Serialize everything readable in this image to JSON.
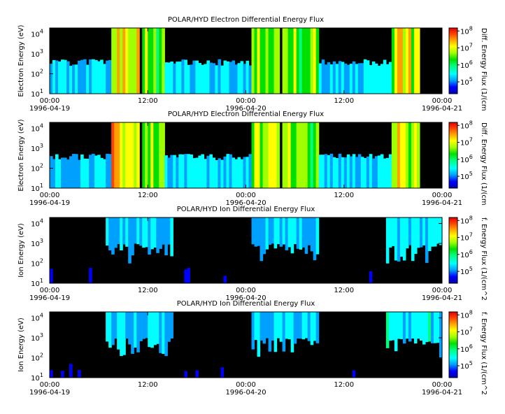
{
  "chart_data": [
    {
      "type": "heatmap",
      "title": "POLAR/HYD  Electron Differential Energy Flux",
      "ylabel": "Electron Energy (eV)",
      "y_scale": "log",
      "ylim": [
        10,
        20000
      ],
      "y_ticks": [
        {
          "value": 10,
          "base": "10",
          "exp": "1"
        },
        {
          "value": 100,
          "base": "10",
          "exp": "2"
        },
        {
          "value": 1000,
          "base": "10",
          "exp": "3"
        },
        {
          "value": 10000,
          "base": "10",
          "exp": "4"
        }
      ],
      "x_ticks": [
        {
          "time": "00:00",
          "date": "1996-04-19"
        },
        {
          "time": "12:00",
          "date": ""
        },
        {
          "time": "00:00",
          "date": "1996-04-20"
        },
        {
          "time": "12:00",
          "date": ""
        },
        {
          "time": "00:00",
          "date": "1996-04-21"
        }
      ],
      "xlim_hours": [
        0,
        48
      ],
      "colorbar": {
        "label": "Diff. Energy Flux (1/(cm",
        "scale": "log",
        "range": [
          20000,
          150000000
        ],
        "ticks": [
          {
            "value": 100000,
            "base": "10",
            "exp": "5"
          },
          {
            "value": 1000000,
            "base": "10",
            "exp": "6"
          },
          {
            "value": 10000000,
            "base": "10",
            "exp": "7"
          },
          {
            "value": 100000000,
            "base": "10",
            "exp": "8"
          }
        ]
      },
      "bursts": [
        {
          "start": 7.6,
          "end": 10.8,
          "level": 0.8
        },
        {
          "start": 11.2,
          "end": 14.2,
          "level": 0.62
        },
        {
          "start": 24.6,
          "end": 28.2,
          "level": 0.66
        },
        {
          "start": 28.4,
          "end": 32.8,
          "level": 0.6
        },
        {
          "start": 41.8,
          "end": 45.4,
          "level": 0.72
        }
      ]
    },
    {
      "type": "heatmap",
      "title": "POLAR/HYD  Electron Differential Energy Flux",
      "ylabel": "Electron Energy (eV)",
      "y_scale": "log",
      "ylim": [
        10,
        20000
      ],
      "y_ticks": [
        {
          "value": 10,
          "base": "10",
          "exp": "1"
        },
        {
          "value": 100,
          "base": "10",
          "exp": "2"
        },
        {
          "value": 1000,
          "base": "10",
          "exp": "3"
        },
        {
          "value": 10000,
          "base": "10",
          "exp": "4"
        }
      ],
      "x_ticks": [
        {
          "time": "00:00",
          "date": "1996-04-19"
        },
        {
          "time": "12:00",
          "date": ""
        },
        {
          "time": "00:00",
          "date": "1996-04-20"
        },
        {
          "time": "12:00",
          "date": ""
        },
        {
          "time": "00:00",
          "date": "1996-04-21"
        }
      ],
      "xlim_hours": [
        0,
        48
      ],
      "colorbar": {
        "label": "Diff. Energy Flux (1/(cm",
        "scale": "log",
        "range": [
          20000,
          150000000
        ],
        "ticks": [
          {
            "value": 100000,
            "base": "10",
            "exp": "5"
          },
          {
            "value": 1000000,
            "base": "10",
            "exp": "6"
          },
          {
            "value": 10000000,
            "base": "10",
            "exp": "7"
          },
          {
            "value": 100000000,
            "base": "10",
            "exp": "8"
          }
        ]
      },
      "bursts": [
        {
          "start": 7.6,
          "end": 10.8,
          "level": 0.8
        },
        {
          "start": 11.2,
          "end": 14.2,
          "level": 0.62
        },
        {
          "start": 24.6,
          "end": 28.2,
          "level": 0.66
        },
        {
          "start": 28.4,
          "end": 32.8,
          "level": 0.6
        },
        {
          "start": 41.8,
          "end": 45.4,
          "level": 0.72
        }
      ]
    },
    {
      "type": "heatmap",
      "title": "POLAR/HYD  Ion Differential Energy Flux",
      "ylabel": "Ion Energy (eV)",
      "y_scale": "log",
      "ylim": [
        10,
        20000
      ],
      "y_ticks": [
        {
          "value": 10,
          "base": "10",
          "exp": "1"
        },
        {
          "value": 100,
          "base": "10",
          "exp": "2"
        },
        {
          "value": 1000,
          "base": "10",
          "exp": "3"
        },
        {
          "value": 10000,
          "base": "10",
          "exp": "4"
        }
      ],
      "x_ticks": [
        {
          "time": "00:00",
          "date": "1996-04-19"
        },
        {
          "time": "12:00",
          "date": ""
        },
        {
          "time": "00:00",
          "date": "1996-04-20"
        },
        {
          "time": "12:00",
          "date": ""
        },
        {
          "time": "00:00",
          "date": "1996-04-21"
        }
      ],
      "xlim_hours": [
        0,
        48
      ],
      "colorbar": {
        "label": "f. Energy Flux (1/(cm^2",
        "scale": "log",
        "range": [
          20000,
          150000000
        ],
        "ticks": [
          {
            "value": 100000,
            "base": "10",
            "exp": "5"
          },
          {
            "value": 1000000,
            "base": "10",
            "exp": "6"
          },
          {
            "value": 10000000,
            "base": "10",
            "exp": "7"
          },
          {
            "value": 100000000,
            "base": "10",
            "exp": "8"
          }
        ]
      },
      "bursts": [
        {
          "start": 7.0,
          "end": 15.0,
          "level": 0.32
        },
        {
          "start": 24.8,
          "end": 33.0,
          "level": 0.3
        },
        {
          "start": 41.2,
          "end": 48.0,
          "level": 0.34
        }
      ]
    },
    {
      "type": "heatmap",
      "title": "POLAR/HYD  Ion Differential Energy Flux",
      "ylabel": "Ion Energy (eV)",
      "y_scale": "log",
      "ylim": [
        10,
        20000
      ],
      "y_ticks": [
        {
          "value": 10,
          "base": "10",
          "exp": "1"
        },
        {
          "value": 100,
          "base": "10",
          "exp": "2"
        },
        {
          "value": 1000,
          "base": "10",
          "exp": "3"
        },
        {
          "value": 10000,
          "base": "10",
          "exp": "4"
        }
      ],
      "x_ticks": [
        {
          "time": "00:00",
          "date": "1996-04-19"
        },
        {
          "time": "12:00",
          "date": ""
        },
        {
          "time": "00:00",
          "date": "1996-04-20"
        },
        {
          "time": "12:00",
          "date": ""
        },
        {
          "time": "00:00",
          "date": "1996-04-21"
        }
      ],
      "xlim_hours": [
        0,
        48
      ],
      "colorbar": {
        "label": "f. Energy Flux (1/(cm^2",
        "scale": "log",
        "range": [
          20000,
          150000000
        ],
        "ticks": [
          {
            "value": 100000,
            "base": "10",
            "exp": "5"
          },
          {
            "value": 1000000,
            "base": "10",
            "exp": "6"
          },
          {
            "value": 10000000,
            "base": "10",
            "exp": "7"
          },
          {
            "value": 100000000,
            "base": "10",
            "exp": "8"
          }
        ]
      },
      "bursts": [
        {
          "start": 7.0,
          "end": 15.0,
          "level": 0.32
        },
        {
          "start": 24.8,
          "end": 33.0,
          "level": 0.3
        },
        {
          "start": 41.2,
          "end": 48.0,
          "level": 0.34
        }
      ]
    }
  ],
  "colors": {
    "background": "#000000",
    "colormap": [
      "#0000b0",
      "#0000ff",
      "#00a0ff",
      "#00ffff",
      "#00ff80",
      "#00e000",
      "#a0ff00",
      "#ffff00",
      "#ffa000",
      "#ff4000",
      "#e00000"
    ]
  }
}
